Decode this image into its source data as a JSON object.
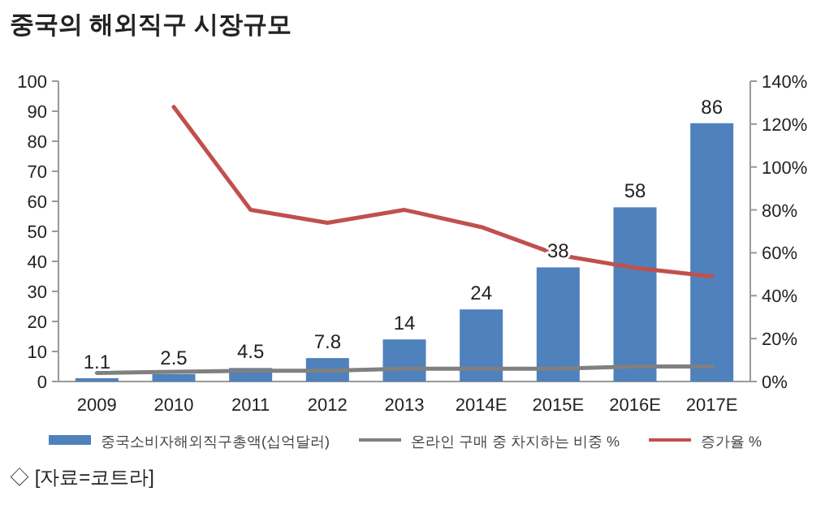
{
  "chart_data": {
    "type": "bar",
    "title": "중국의 해외직구 시장규모",
    "categories": [
      "2009",
      "2010",
      "2011",
      "2012",
      "2013",
      "2014E",
      "2015E",
      "2016E",
      "2017E"
    ],
    "series": [
      {
        "name": "중국소비자해외직구총액(십억달러)",
        "color": "#4f81bd",
        "values": [
          1.1,
          2.5,
          4.5,
          7.8,
          14,
          24,
          38,
          58,
          86
        ],
        "value_labels": [
          "1.1",
          "2.5",
          "4.5",
          "7.8",
          "14",
          "24",
          "38",
          "58",
          "86"
        ]
      },
      {
        "name": "온라인 구매 중 차지하는 비중 %",
        "type": "line",
        "axis": "y2",
        "color": "#808080",
        "values": [
          4,
          4.5,
          5,
          5,
          6,
          6,
          6,
          7,
          7
        ]
      },
      {
        "name": "증가율 %",
        "type": "line",
        "axis": "y2",
        "color": "#c0504d",
        "values": [
          null,
          128,
          80,
          74,
          80,
          72,
          59,
          53,
          49
        ]
      }
    ],
    "ylim": [
      0,
      100
    ],
    "yticks": [
      0,
      10,
      20,
      30,
      40,
      50,
      60,
      70,
      80,
      90,
      100
    ],
    "y2lim": [
      0,
      140
    ],
    "y2ticks": [
      {
        "value": 0,
        "label": "0%"
      },
      {
        "value": 20,
        "label": "20%"
      },
      {
        "value": 40,
        "label": "40%"
      },
      {
        "value": 60,
        "label": "60%"
      },
      {
        "value": 80,
        "label": "80%"
      },
      {
        "value": 100,
        "label": "100%"
      },
      {
        "value": 120,
        "label": "120%"
      },
      {
        "value": 140,
        "label": "140%"
      }
    ],
    "grid": false,
    "legend": "bottom",
    "annotations": [
      "◇ [자료=코트라]"
    ]
  }
}
